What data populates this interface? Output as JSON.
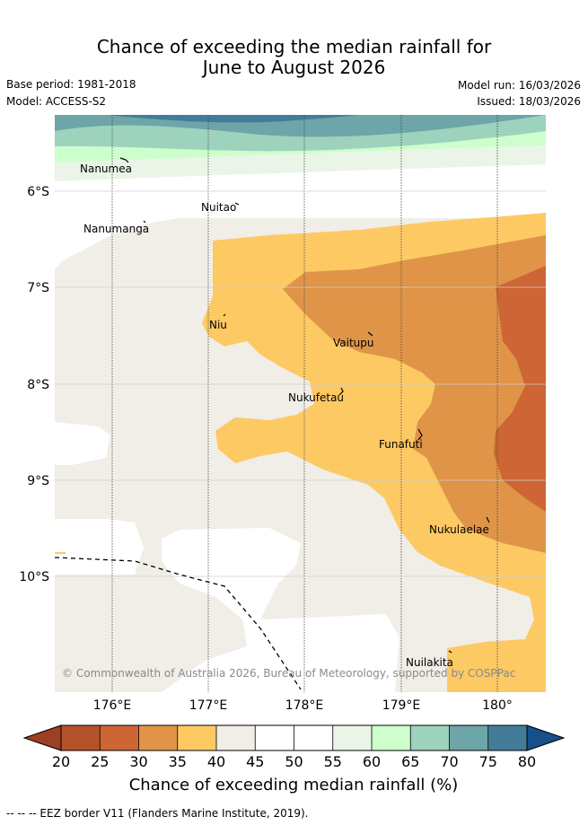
{
  "title": {
    "line1": "Chance of exceeding the median rainfall for",
    "line2": "June to August 2026"
  },
  "info": {
    "base_period": "Base period: 1981-2018",
    "model": "Model: ACCESS-S2",
    "model_run": "Model run: 16/03/2026",
    "issued": "Issued: 18/03/2026"
  },
  "map": {
    "lat_labels": [
      "6°S",
      "7°S",
      "8°S",
      "9°S",
      "10°S"
    ],
    "lon_labels": [
      "176°E",
      "177°E",
      "178°E",
      "179°E",
      "180°"
    ],
    "places": [
      "Nanumea",
      "Nuitao",
      "Nanumanga",
      "Niu",
      "Vaitupu",
      "Nukufetau",
      "Funafuti",
      "Nukulaelae",
      "Nuilakita"
    ],
    "copyright": "© Commonwealth of Australia 2026, Bureau of Meteorology, supported by COSPPac"
  },
  "colorbar": {
    "ticks": [
      "20",
      "25",
      "30",
      "35",
      "40",
      "45",
      "50",
      "55",
      "60",
      "65",
      "70",
      "75",
      "80"
    ],
    "colors": [
      "#b4522a",
      "#cd6634",
      "#e09448",
      "#fdc963",
      "#f1ede7",
      "#ffffff",
      "#ffffff",
      "#eaf5e7",
      "#ccffcc",
      "#9dd2bc",
      "#6ea5a8",
      "#437c99"
    ],
    "under_color": "#9e3f24",
    "over_color": "#15508a",
    "label": "Chance of exceeding median rainfall (%)"
  },
  "footer": "--  --  -- EEZ border V11 (Flanders Marine Institute, 2019)."
}
